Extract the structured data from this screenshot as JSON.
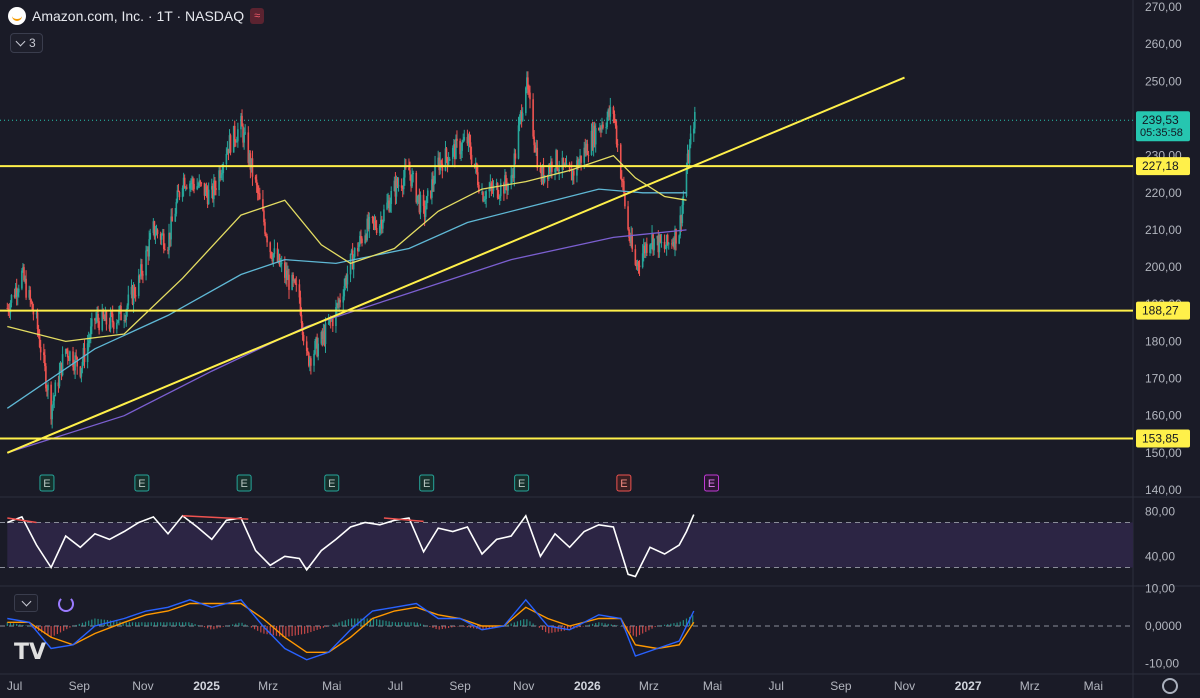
{
  "header": {
    "symbol_title": "Amazon.com, Inc. · 1T · NASDAQ",
    "wave_icon": "wave-icon",
    "indicator_count": "3"
  },
  "colors": {
    "background": "#1a1b27",
    "candle_up": "#26a69a",
    "candle_down": "#ef5350",
    "hline": "#fff04a",
    "trendline": "#fff04a",
    "ema_short": "#e4dd62",
    "ema_mid": "#5fb8d5",
    "ema_long": "#7b5fd0",
    "rsi": "#ffffff",
    "rsi_band": "#2c2544",
    "macd": "#2962ff",
    "signal": "#ff9800",
    "price_tag": "#26c6b0",
    "earnings_up": "#26a69a",
    "earnings_down": "#ef5350",
    "earnings_future": "#c23ad6"
  },
  "chart_data": [
    {
      "type": "candlestick",
      "title": "Amazon.com, Inc. · 1T · NASDAQ",
      "ylim": [
        140,
        270
      ],
      "yticks": [
        "270,00",
        "260,00",
        "250,00",
        "240,00",
        "230,00",
        "220,00",
        "210,00",
        "200,00",
        "190,00",
        "180,00",
        "170,00",
        "160,00",
        "150,00",
        "140,00"
      ],
      "x_labels": [
        "Jul",
        "Sep",
        "Nov",
        "2025",
        "Mrz",
        "Mai",
        "Jul",
        "Sep",
        "Nov",
        "2026",
        "Mrz",
        "Mai",
        "Jul",
        "Sep",
        "Nov",
        "2027",
        "Mrz",
        "Mai"
      ],
      "x_label_months": [
        "2024-07",
        "2024-09",
        "2024-11",
        "2025-01",
        "2025-03",
        "2025-05",
        "2025-07",
        "2025-09",
        "2025-11",
        "2026-01",
        "2026-03",
        "2026-05",
        "2026-07",
        "2026-09",
        "2026-11",
        "2027-01",
        "2027-03",
        "2027-05"
      ],
      "close_series": [
        [
          "2024-06-24",
          189
        ],
        [
          "2024-07-08",
          198
        ],
        [
          "2024-07-22",
          185
        ],
        [
          "2024-08-05",
          162
        ],
        [
          "2024-08-19",
          178
        ],
        [
          "2024-09-02",
          173
        ],
        [
          "2024-09-16",
          186
        ],
        [
          "2024-09-30",
          185
        ],
        [
          "2024-10-14",
          188
        ],
        [
          "2024-10-28",
          196
        ],
        [
          "2024-11-11",
          210
        ],
        [
          "2024-11-25",
          207
        ],
        [
          "2024-12-09",
          224
        ],
        [
          "2024-12-23",
          222
        ],
        [
          "2025-01-06",
          219
        ],
        [
          "2025-01-20",
          232
        ],
        [
          "2025-02-03",
          238
        ],
        [
          "2025-02-17",
          222
        ],
        [
          "2025-03-03",
          205
        ],
        [
          "2025-03-17",
          198
        ],
        [
          "2025-03-31",
          192
        ],
        [
          "2025-04-07",
          175
        ],
        [
          "2025-04-21",
          180
        ],
        [
          "2025-05-05",
          188
        ],
        [
          "2025-05-19",
          201
        ],
        [
          "2025-06-02",
          210
        ],
        [
          "2025-06-16",
          212
        ],
        [
          "2025-06-30",
          221
        ],
        [
          "2025-07-14",
          226
        ],
        [
          "2025-07-28",
          214
        ],
        [
          "2025-08-11",
          228
        ],
        [
          "2025-08-25",
          231
        ],
        [
          "2025-09-08",
          234
        ],
        [
          "2025-09-22",
          220
        ],
        [
          "2025-10-06",
          221
        ],
        [
          "2025-10-20",
          223
        ],
        [
          "2025-11-03",
          250
        ],
        [
          "2025-11-17",
          224
        ],
        [
          "2025-12-01",
          229
        ],
        [
          "2025-12-15",
          224
        ],
        [
          "2025-12-29",
          231
        ],
        [
          "2026-01-12",
          238
        ],
        [
          "2026-01-26",
          242
        ],
        [
          "2026-02-09",
          210
        ],
        [
          "2026-02-16",
          200
        ],
        [
          "2026-03-02",
          208
        ],
        [
          "2026-03-16",
          205
        ],
        [
          "2026-03-30",
          210
        ],
        [
          "2026-04-06",
          226
        ],
        [
          "2026-04-13",
          239.53
        ]
      ],
      "ema_short": [
        [
          "2024-06-24",
          184
        ],
        [
          "2024-08-19",
          180
        ],
        [
          "2024-10-14",
          182
        ],
        [
          "2024-12-09",
          197
        ],
        [
          "2025-02-03",
          214
        ],
        [
          "2025-03-17",
          218
        ],
        [
          "2025-04-21",
          206
        ],
        [
          "2025-05-19",
          201
        ],
        [
          "2025-06-30",
          205
        ],
        [
          "2025-08-11",
          215
        ],
        [
          "2025-09-22",
          221
        ],
        [
          "2025-11-03",
          223
        ],
        [
          "2025-12-15",
          226
        ],
        [
          "2026-01-26",
          230
        ],
        [
          "2026-02-16",
          224
        ],
        [
          "2026-03-16",
          219
        ],
        [
          "2026-04-06",
          218
        ]
      ],
      "ema_mid": [
        [
          "2024-06-24",
          162
        ],
        [
          "2024-09-16",
          178
        ],
        [
          "2024-11-25",
          187
        ],
        [
          "2025-02-03",
          198
        ],
        [
          "2025-03-17",
          202
        ],
        [
          "2025-05-05",
          201
        ],
        [
          "2025-07-14",
          205
        ],
        [
          "2025-09-08",
          212
        ],
        [
          "2025-11-03",
          216
        ],
        [
          "2026-01-12",
          221
        ],
        [
          "2026-02-23",
          220
        ],
        [
          "2026-04-06",
          220
        ]
      ],
      "ema_long": [
        [
          "2024-06-24",
          150
        ],
        [
          "2024-10-14",
          160
        ],
        [
          "2025-01-06",
          172
        ],
        [
          "2025-04-07",
          184
        ],
        [
          "2025-07-14",
          193
        ],
        [
          "2025-10-20",
          202
        ],
        [
          "2026-01-26",
          208
        ],
        [
          "2026-04-06",
          210
        ]
      ],
      "horizontal_levels": [
        {
          "label": "227,18",
          "value": 227.18
        },
        {
          "label": "188,27",
          "value": 188.27
        },
        {
          "label": "153,85",
          "value": 153.85
        }
      ],
      "trendline": {
        "start": [
          "2024-06-24",
          150
        ],
        "end": [
          "2026-11-01",
          251
        ]
      },
      "last_price": {
        "value": "239,53",
        "countdown": "05:35:58",
        "level": 239.53
      },
      "earnings_markers": [
        {
          "date": "2024-08-01",
          "label": "E",
          "kind": "up"
        },
        {
          "date": "2024-10-31",
          "label": "E",
          "kind": "up"
        },
        {
          "date": "2025-02-06",
          "label": "E",
          "kind": "up"
        },
        {
          "date": "2025-05-01",
          "label": "E",
          "kind": "up"
        },
        {
          "date": "2025-07-31",
          "label": "E",
          "kind": "up"
        },
        {
          "date": "2025-10-30",
          "label": "E",
          "kind": "up"
        },
        {
          "date": "2026-02-05",
          "label": "E",
          "kind": "down"
        },
        {
          "date": "2026-04-30",
          "label": "E",
          "kind": "future"
        }
      ]
    },
    {
      "type": "line",
      "series_kind": "RSI",
      "ylim": [
        10,
        90
      ],
      "yticks": [
        "80,00",
        "40,00"
      ],
      "bands": [
        70,
        30
      ],
      "values": [
        [
          "2024-06-24",
          70
        ],
        [
          "2024-07-08",
          75
        ],
        [
          "2024-07-22",
          50
        ],
        [
          "2024-08-05",
          30
        ],
        [
          "2024-08-19",
          58
        ],
        [
          "2024-09-02",
          48
        ],
        [
          "2024-09-16",
          60
        ],
        [
          "2024-09-30",
          55
        ],
        [
          "2024-10-14",
          62
        ],
        [
          "2024-10-28",
          70
        ],
        [
          "2024-11-11",
          75
        ],
        [
          "2024-11-25",
          60
        ],
        [
          "2024-12-09",
          76
        ],
        [
          "2024-12-23",
          66
        ],
        [
          "2025-01-06",
          55
        ],
        [
          "2025-01-20",
          72
        ],
        [
          "2025-02-03",
          74
        ],
        [
          "2025-02-17",
          45
        ],
        [
          "2025-03-03",
          32
        ],
        [
          "2025-03-17",
          40
        ],
        [
          "2025-03-31",
          38
        ],
        [
          "2025-04-07",
          28
        ],
        [
          "2025-04-21",
          45
        ],
        [
          "2025-05-05",
          55
        ],
        [
          "2025-05-19",
          66
        ],
        [
          "2025-06-02",
          70
        ],
        [
          "2025-06-16",
          68
        ],
        [
          "2025-06-30",
          72
        ],
        [
          "2025-07-14",
          74
        ],
        [
          "2025-07-28",
          44
        ],
        [
          "2025-08-11",
          65
        ],
        [
          "2025-08-25",
          62
        ],
        [
          "2025-09-08",
          66
        ],
        [
          "2025-09-22",
          42
        ],
        [
          "2025-10-06",
          55
        ],
        [
          "2025-10-20",
          58
        ],
        [
          "2025-11-03",
          76
        ],
        [
          "2025-11-17",
          40
        ],
        [
          "2025-12-01",
          60
        ],
        [
          "2025-12-15",
          48
        ],
        [
          "2025-12-29",
          62
        ],
        [
          "2026-01-12",
          68
        ],
        [
          "2026-01-26",
          66
        ],
        [
          "2026-02-09",
          24
        ],
        [
          "2026-02-16",
          22
        ],
        [
          "2026-03-02",
          48
        ],
        [
          "2026-03-16",
          42
        ],
        [
          "2026-03-30",
          50
        ],
        [
          "2026-04-06",
          62
        ],
        [
          "2026-04-13",
          77
        ]
      ],
      "divergences": [
        [
          [
            "2024-06-24",
            74
          ],
          [
            "2024-07-22",
            70
          ]
        ],
        [
          [
            "2024-12-09",
            76
          ],
          [
            "2025-02-10",
            73
          ]
        ],
        [
          [
            "2025-06-20",
            74
          ],
          [
            "2025-07-28",
            71
          ]
        ]
      ]
    },
    {
      "type": "line",
      "series_kind": "MACD",
      "ylim": [
        -12,
        12
      ],
      "yticks": [
        "10,00",
        "0,0000",
        "-10,00"
      ],
      "macd": [
        [
          "2024-06-24",
          2
        ],
        [
          "2024-07-15",
          1
        ],
        [
          "2024-08-05",
          -6
        ],
        [
          "2024-08-26",
          -5
        ],
        [
          "2024-09-16",
          0
        ],
        [
          "2024-10-14",
          2
        ],
        [
          "2024-11-04",
          4
        ],
        [
          "2024-11-25",
          5
        ],
        [
          "2024-12-16",
          7
        ],
        [
          "2025-01-06",
          5
        ],
        [
          "2025-02-03",
          7
        ],
        [
          "2025-02-24",
          0
        ],
        [
          "2025-03-17",
          -6
        ],
        [
          "2025-04-07",
          -9
        ],
        [
          "2025-04-28",
          -7
        ],
        [
          "2025-05-19",
          -1
        ],
        [
          "2025-06-09",
          4
        ],
        [
          "2025-06-30",
          5
        ],
        [
          "2025-07-21",
          6
        ],
        [
          "2025-08-11",
          2
        ],
        [
          "2025-09-01",
          2
        ],
        [
          "2025-09-22",
          -1
        ],
        [
          "2025-10-13",
          0
        ],
        [
          "2025-11-03",
          7
        ],
        [
          "2025-11-24",
          0
        ],
        [
          "2025-12-15",
          -1
        ],
        [
          "2026-01-12",
          3
        ],
        [
          "2026-02-02",
          2
        ],
        [
          "2026-02-16",
          -8
        ],
        [
          "2026-03-09",
          -6
        ],
        [
          "2026-03-30",
          -4
        ],
        [
          "2026-04-13",
          4
        ]
      ],
      "signal": [
        [
          "2024-06-24",
          1
        ],
        [
          "2024-07-15",
          1
        ],
        [
          "2024-08-05",
          -3
        ],
        [
          "2024-08-26",
          -5
        ],
        [
          "2024-09-16",
          -2
        ],
        [
          "2024-10-14",
          1
        ],
        [
          "2024-11-04",
          3
        ],
        [
          "2024-11-25",
          4
        ],
        [
          "2024-12-16",
          6
        ],
        [
          "2025-01-06",
          6
        ],
        [
          "2025-02-03",
          6
        ],
        [
          "2025-02-24",
          2
        ],
        [
          "2025-03-17",
          -3
        ],
        [
          "2025-04-07",
          -7
        ],
        [
          "2025-04-28",
          -7
        ],
        [
          "2025-05-19",
          -3
        ],
        [
          "2025-06-09",
          2
        ],
        [
          "2025-06-30",
          4
        ],
        [
          "2025-07-21",
          5
        ],
        [
          "2025-08-11",
          3
        ],
        [
          "2025-09-01",
          2
        ],
        [
          "2025-09-22",
          0
        ],
        [
          "2025-10-13",
          0
        ],
        [
          "2025-11-03",
          5
        ],
        [
          "2025-11-24",
          2
        ],
        [
          "2025-12-15",
          0
        ],
        [
          "2026-01-12",
          2
        ],
        [
          "2026-02-02",
          2
        ],
        [
          "2026-02-16",
          -5
        ],
        [
          "2026-03-09",
          -6
        ],
        [
          "2026-03-30",
          -5
        ],
        [
          "2026-04-13",
          1
        ]
      ]
    }
  ]
}
